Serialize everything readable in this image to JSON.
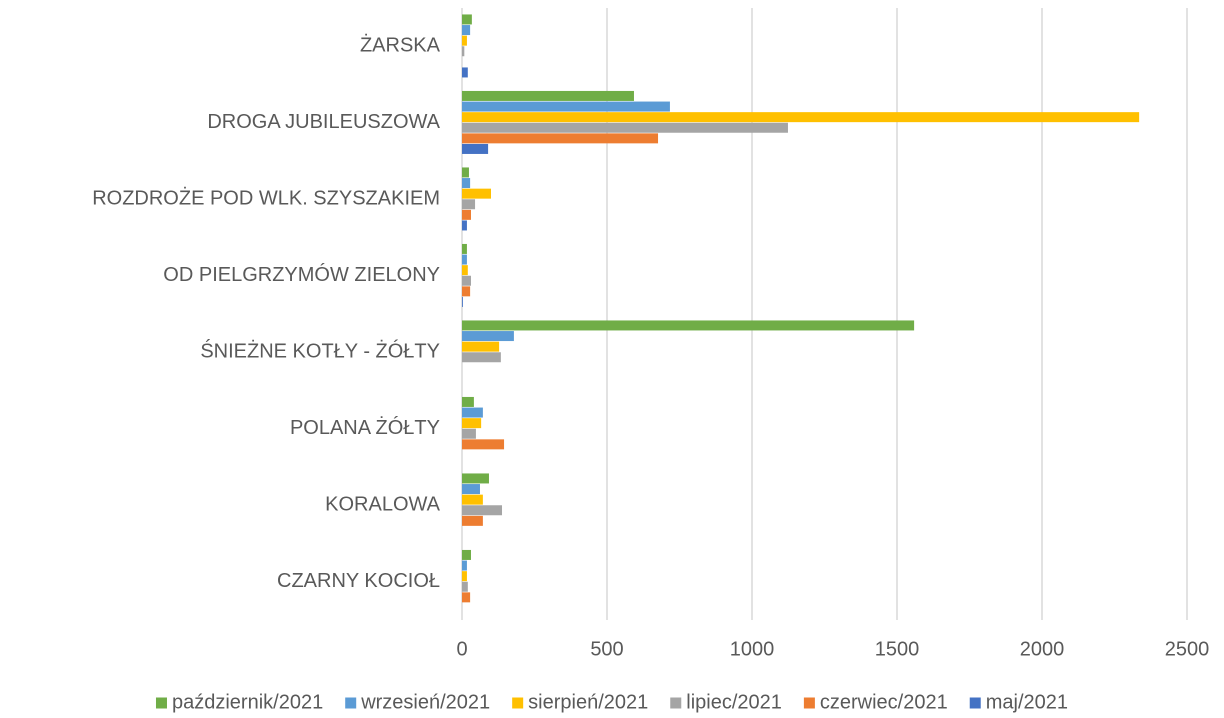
{
  "chart_data": {
    "type": "hbar",
    "categories": [
      "ŻARSKA",
      "DROGA JUBILEUSZOWA",
      "ROZDROŻE POD WLK. SZYSZAKIEM",
      "OD PIELGRZYMÓW ZIELONY",
      "ŚNIEŻNE KOTŁY - ŻÓŁTY",
      "POLANA ŻÓŁTY",
      "KORALOWA",
      "CZARNY KOCIOŁ"
    ],
    "series": [
      {
        "name": "październik/2021",
        "color": "#70ad47",
        "values": [
          34,
          593,
          24,
          17,
          1559,
          41,
          93,
          31
        ]
      },
      {
        "name": "wrzesień/2021",
        "color": "#5b9bd5",
        "values": [
          28,
          717,
          28,
          17,
          179,
          72,
          62,
          17
        ]
      },
      {
        "name": "sierpień/2021",
        "color": "#ffc000",
        "values": [
          17,
          2335,
          100,
          20,
          128,
          66,
          72,
          17
        ]
      },
      {
        "name": "lipiec/2021",
        "color": "#a5a5a5",
        "values": [
          8,
          1124,
          45,
          31,
          134,
          48,
          138,
          20
        ]
      },
      {
        "name": "czerwiec/2021",
        "color": "#ed7d31",
        "values": [
          0,
          676,
          31,
          28,
          0,
          145,
          72,
          28
        ]
      },
      {
        "name": "maj/2021",
        "color": "#4472c4",
        "values": [
          20,
          90,
          17,
          3,
          0,
          0,
          0,
          0
        ]
      }
    ],
    "xlim": [
      0,
      2500
    ],
    "xticks": [
      0,
      500,
      1000,
      1500,
      2000,
      2500
    ],
    "grid": true,
    "legend": "bottom"
  }
}
